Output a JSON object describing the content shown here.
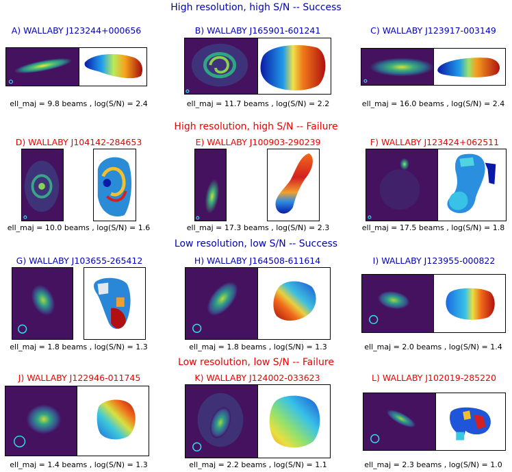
{
  "sections": [
    {
      "title": "High resolution, high S/N -- Success",
      "status": "success",
      "color": "#0000bb"
    },
    {
      "title": "High resolution, high S/N -- Failure",
      "status": "failure",
      "color": "#ee0000"
    },
    {
      "title": "Low resolution, low S/N -- Success",
      "status": "success",
      "color": "#0000bb"
    },
    {
      "title": "Low resolution, low S/N -- Failure",
      "status": "failure",
      "color": "#ee0000"
    }
  ],
  "panels": [
    {
      "title": "A) WALLABY J123244+000656",
      "caption": "ell_maj = 9.8 beams , log(S/N) = 2.4"
    },
    {
      "title": "B) WALLABY J165901-601241",
      "caption": "ell_maj = 11.7 beams , log(S/N) = 2.2"
    },
    {
      "title": "C) WALLABY J123917-003149",
      "caption": "ell_maj = 16.0 beams , log(S/N) = 2.4"
    },
    {
      "title": "D) WALLABY J104142-284653",
      "caption": "ell_maj = 10.0 beams , log(S/N) = 1.6"
    },
    {
      "title": "E) WALLABY J100903-290239",
      "caption": "ell_maj = 17.3 beams , log(S/N) = 2.3"
    },
    {
      "title": "F) WALLABY J123424+062511",
      "caption": "ell_maj = 17.5 beams , log(S/N) = 1.8"
    },
    {
      "title": "G) WALLABY J103655-265412",
      "caption": "ell_maj = 1.8 beams , log(S/N) = 1.3"
    },
    {
      "title": "H) WALLABY J164508-611614",
      "caption": "ell_maj = 1.8 beams , log(S/N) = 1.3"
    },
    {
      "title": "I) WALLABY J123955-000822",
      "caption": "ell_maj = 2.0 beams , log(S/N) = 1.4"
    },
    {
      "title": "J) WALLABY J122946-011745",
      "caption": "ell_maj = 1.4 beams , log(S/N) = 1.3"
    },
    {
      "title": "K) WALLABY J124002-033623",
      "caption": "ell_maj = 2.2 beams , log(S/N) = 1.1"
    },
    {
      "title": "L) WALLABY J102019-285220",
      "caption": "ell_maj = 2.3 beams , log(S/N) = 1.0"
    }
  ],
  "colors": {
    "success": "#0000bb",
    "failure": "#ee0000",
    "background_map": "#44125f",
    "beam": "#33ddee"
  }
}
